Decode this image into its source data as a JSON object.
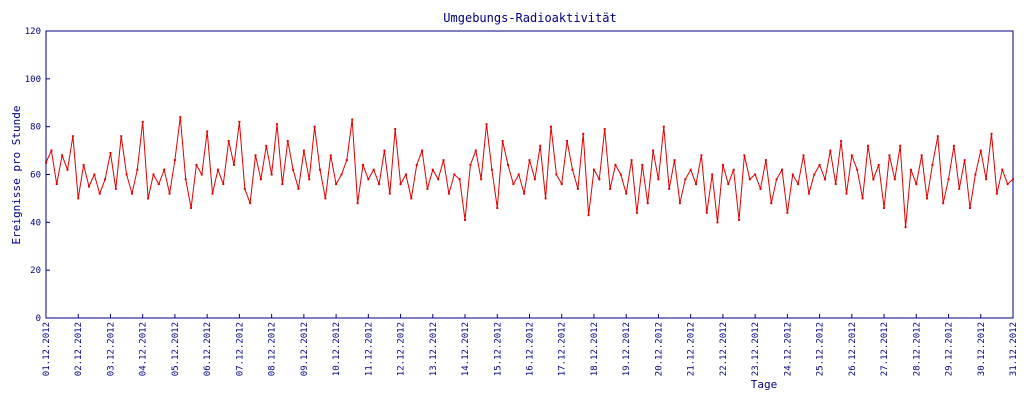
{
  "chart_data": {
    "type": "line",
    "title": "Umgebungs-Radioaktivität",
    "x_label": "Tage",
    "y_label": "Ereignisse pro Stunde",
    "categories": [
      "01.12.2012",
      null,
      null,
      null,
      null,
      null,
      "02.12.2012",
      null,
      null,
      null,
      null,
      null,
      "03.12.2012",
      null,
      null,
      null,
      null,
      null,
      "04.12.2012",
      null,
      null,
      null,
      null,
      null,
      "05.12.2012",
      null,
      null,
      null,
      null,
      null,
      "06.12.2012",
      null,
      null,
      null,
      null,
      null,
      "07.12.2012",
      null,
      null,
      null,
      null,
      null,
      "08.12.2012",
      null,
      null,
      null,
      null,
      null,
      "09.12.2012",
      null,
      null,
      null,
      null,
      null,
      "10.12.2012",
      null,
      null,
      null,
      null,
      null,
      "11.12.2012",
      null,
      null,
      null,
      null,
      null,
      "12.12.2012",
      null,
      null,
      null,
      null,
      null,
      "13.12.2012",
      null,
      null,
      null,
      null,
      null,
      "14.12.2012",
      null,
      null,
      null,
      null,
      null,
      "15.12.2012",
      null,
      null,
      null,
      null,
      null,
      "16.12.2012",
      null,
      null,
      null,
      null,
      null,
      "17.12.2012",
      null,
      null,
      null,
      null,
      null,
      "18.12.2012",
      null,
      null,
      null,
      null,
      null,
      "19.12.2012",
      null,
      null,
      null,
      null,
      null,
      "20.12.2012",
      null,
      null,
      null,
      null,
      null,
      "21.12.2012",
      null,
      null,
      null,
      null,
      null,
      "22.12.2012",
      null,
      null,
      null,
      null,
      null,
      "23.12.2012",
      null,
      null,
      null,
      null,
      null,
      "24.12.2012",
      null,
      null,
      null,
      null,
      null,
      "25.12.2012",
      null,
      null,
      null,
      null,
      null,
      "26.12.2012",
      null,
      null,
      null,
      null,
      null,
      "27.12.2012",
      null,
      null,
      null,
      null,
      null,
      "28.12.2012",
      null,
      null,
      null,
      null,
      null,
      "29.12.2012",
      null,
      null,
      null,
      null,
      null,
      "30.12.2012",
      null,
      null,
      null,
      null,
      null,
      "31.12.2012"
    ],
    "values": [
      65,
      70,
      56,
      68,
      62,
      76,
      50,
      64,
      55,
      60,
      52,
      58,
      69,
      54,
      76,
      60,
      52,
      62,
      82,
      50,
      60,
      56,
      62,
      52,
      66,
      84,
      58,
      46,
      64,
      60,
      78,
      52,
      62,
      56,
      74,
      64,
      82,
      54,
      48,
      68,
      58,
      72,
      60,
      81,
      56,
      74,
      62,
      54,
      70,
      58,
      80,
      62,
      50,
      68,
      56,
      60,
      66,
      83,
      48,
      64,
      58,
      62,
      56,
      70,
      52,
      79,
      56,
      60,
      50,
      64,
      70,
      54,
      62,
      58,
      66,
      52,
      60,
      58,
      41,
      64,
      70,
      58,
      81,
      62,
      46,
      74,
      64,
      56,
      60,
      52,
      66,
      58,
      72,
      50,
      80,
      60,
      56,
      74,
      62,
      54,
      77,
      43,
      62,
      58,
      79,
      54,
      64,
      60,
      52,
      66,
      44,
      64,
      48,
      70,
      58,
      80,
      54,
      66,
      48,
      58,
      62,
      56,
      68,
      44,
      60,
      40,
      64,
      56,
      62,
      41,
      68,
      58,
      60,
      54,
      66,
      48,
      58,
      62,
      44,
      60,
      56,
      68,
      52,
      60,
      64,
      58,
      70,
      56,
      74,
      52,
      68,
      62,
      50,
      72,
      58,
      64,
      46,
      68,
      58,
      72,
      38,
      62,
      56,
      68,
      50,
      64,
      76,
      48,
      58,
      72,
      54,
      66,
      46,
      60,
      70,
      58,
      77,
      52,
      62,
      56,
      58
    ],
    "color": "#e00000",
    "ylim": [
      0,
      120
    ],
    "yticks": [
      0,
      20,
      40,
      60,
      80,
      100,
      120
    ],
    "grid": false
  }
}
